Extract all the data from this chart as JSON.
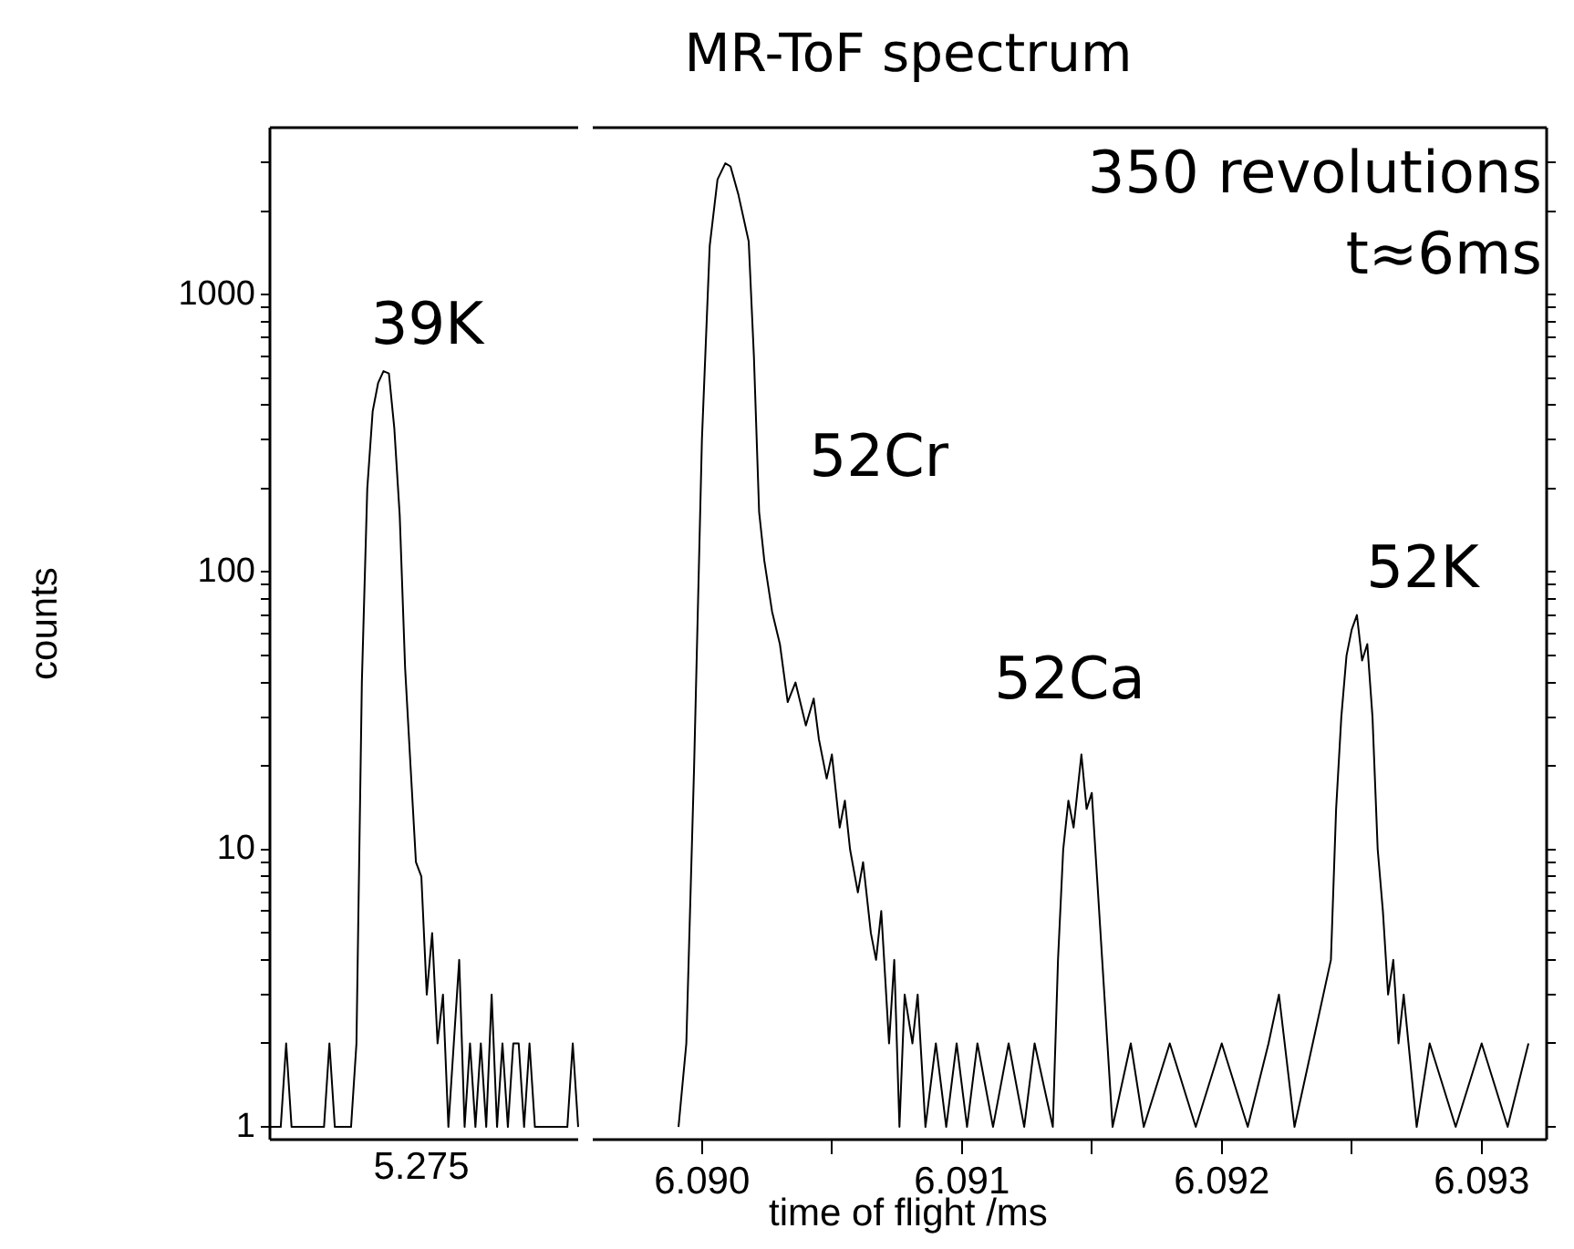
{
  "chart_data": [
    {
      "type": "line",
      "ylabel": "counts",
      "log": "y",
      "grid": false,
      "marker": "none",
      "categories": [
        null,
        null,
        null,
        null,
        null,
        null,
        null,
        null,
        null,
        null,
        null,
        null,
        null,
        null,
        null,
        null,
        null,
        null,
        null,
        null,
        null,
        null,
        null,
        null,
        null,
        null,
        null,
        null,
        "5.275",
        null,
        null,
        null,
        null,
        null,
        null,
        null,
        null,
        null,
        null,
        null,
        null,
        null,
        null,
        null,
        null,
        null,
        null,
        null,
        null,
        null,
        null,
        null,
        null,
        null,
        null,
        null,
        null,
        null
      ],
      "ylim": [
        0.9,
        4000
      ],
      "yticks": [
        1,
        {
          "value": 2,
          "label": null
        },
        {
          "value": 3,
          "label": null
        },
        {
          "value": 4,
          "label": null
        },
        {
          "value": 5,
          "label": null
        },
        {
          "value": 6,
          "label": null
        },
        {
          "value": 7,
          "label": null
        },
        {
          "value": 8,
          "label": null
        },
        {
          "value": 9,
          "label": null
        },
        10,
        {
          "value": 20,
          "label": null
        },
        {
          "value": 30,
          "label": null
        },
        {
          "value": 40,
          "label": null
        },
        {
          "value": 50,
          "label": null
        },
        {
          "value": 60,
          "label": null
        },
        {
          "value": 70,
          "label": null
        },
        {
          "value": 80,
          "label": null
        },
        {
          "value": 90,
          "label": null
        },
        100,
        {
          "value": 200,
          "label": null
        },
        {
          "value": 300,
          "label": null
        },
        {
          "value": 400,
          "label": null
        },
        {
          "value": 500,
          "label": null
        },
        {
          "value": 600,
          "label": null
        },
        {
          "value": 700,
          "label": null
        },
        {
          "value": 800,
          "label": null
        },
        {
          "value": 900,
          "label": null
        },
        1000,
        {
          "value": 2000,
          "label": null
        },
        {
          "value": 3000,
          "label": null
        }
      ],
      "annotations": [
        "39K"
      ],
      "series": [
        {
          "color": "#000000",
          "values": [
            1,
            1,
            1,
            2,
            1,
            1,
            1,
            1,
            1,
            1,
            1,
            2,
            1,
            1,
            1,
            1,
            2,
            40,
            200,
            380,
            480,
            530,
            520,
            330,
            160,
            45,
            20,
            9,
            8,
            3,
            5,
            2,
            3,
            1,
            2,
            4,
            1,
            2,
            1,
            2,
            1,
            3,
            1,
            2,
            1,
            2,
            2,
            1,
            2,
            1,
            1,
            1,
            1,
            1,
            1,
            1,
            2,
            1
          ]
        }
      ]
    },
    {
      "type": "line",
      "title": "MR-ToF spectrum",
      "xlabel": "time of flight /ms",
      "log": "y",
      "grid": false,
      "marker": "none",
      "tick_labels": "x",
      "xlim": [
        6.08958,
        6.09325
      ],
      "xticks": [
        {
          "value": 6.09,
          "label": "6.090"
        },
        {
          "value": 6.0905,
          "label": null
        },
        6.091,
        {
          "value": 6.0915,
          "label": null
        },
        6.092,
        {
          "value": 6.0925,
          "label": null
        },
        6.093
      ],
      "ylim": [
        0.9,
        4000
      ],
      "yticks": [
        1,
        {
          "value": 2,
          "label": null
        },
        {
          "value": 3,
          "label": null
        },
        {
          "value": 4,
          "label": null
        },
        {
          "value": 5,
          "label": null
        },
        {
          "value": 6,
          "label": null
        },
        {
          "value": 7,
          "label": null
        },
        {
          "value": 8,
          "label": null
        },
        {
          "value": 9,
          "label": null
        },
        10,
        {
          "value": 20,
          "label": null
        },
        {
          "value": 30,
          "label": null
        },
        {
          "value": 40,
          "label": null
        },
        {
          "value": 50,
          "label": null
        },
        {
          "value": 60,
          "label": null
        },
        {
          "value": 70,
          "label": null
        },
        {
          "value": 80,
          "label": null
        },
        {
          "value": 90,
          "label": null
        },
        100,
        {
          "value": 200,
          "label": null
        },
        {
          "value": 300,
          "label": null
        },
        {
          "value": 400,
          "label": null
        },
        {
          "value": 500,
          "label": null
        },
        {
          "value": 600,
          "label": null
        },
        {
          "value": 700,
          "label": null
        },
        {
          "value": 800,
          "label": null
        },
        {
          "value": 900,
          "label": null
        },
        1000,
        {
          "value": 2000,
          "label": null
        },
        {
          "value": 3000,
          "label": null
        }
      ],
      "annotations": [
        "350 revolutions",
        "t≈6ms",
        "52Cr",
        "52Ca",
        "52K"
      ],
      "series": [
        {
          "color": "#000000",
          "x": [
            6.08991,
            6.08994,
            6.08997,
            6.09,
            6.09003,
            6.09006,
            6.09009,
            6.09011,
            6.09014,
            6.09018,
            6.0902,
            6.09022,
            6.09024,
            6.09027,
            6.0903,
            6.09033,
            6.09036,
            6.0904,
            6.09043,
            6.09045,
            6.09048,
            6.0905,
            6.09053,
            6.09055,
            6.09057,
            6.0906,
            6.09062,
            6.09065,
            6.09067,
            6.09069,
            6.09072,
            6.09074,
            6.09076,
            6.09078,
            6.09081,
            6.09083,
            6.09086,
            6.0909,
            6.09094,
            6.09098,
            6.09102,
            6.09106,
            6.09112,
            6.09118,
            6.09124,
            6.09128,
            6.09135,
            6.09137,
            6.09139,
            6.09141,
            6.09143,
            6.09146,
            6.09148,
            6.0915,
            6.09152,
            6.09154,
            6.09156,
            6.09158,
            6.09165,
            6.0917,
            6.0918,
            6.0919,
            6.092,
            6.0921,
            6.09218,
            6.09222,
            6.09228,
            6.09235,
            6.09242,
            6.09244,
            6.09246,
            6.09248,
            6.0925,
            6.09252,
            6.09254,
            6.09256,
            6.09258,
            6.0926,
            6.09262,
            6.09264,
            6.09266,
            6.09268,
            6.0927,
            6.09275,
            6.0928,
            6.0929,
            6.093,
            6.0931,
            6.09318
          ],
          "values": [
            1,
            2,
            20,
            300,
            1500,
            2600,
            2975,
            2900,
            2300,
            1555,
            600,
            165,
            110,
            72,
            55,
            34,
            40,
            28,
            35,
            25,
            18,
            22,
            12,
            15,
            10,
            7,
            9,
            5,
            4,
            6,
            2,
            4,
            1,
            3,
            2,
            3,
            1,
            2,
            1,
            2,
            1,
            2,
            1,
            2,
            1,
            2,
            1,
            4,
            10,
            15,
            12,
            22,
            14,
            16,
            8,
            4,
            2,
            1,
            2,
            1,
            2,
            1,
            2,
            1,
            2,
            3,
            1,
            2,
            4,
            14,
            30,
            50,
            62,
            70,
            48,
            55,
            30,
            10,
            6,
            3,
            4,
            2,
            3,
            1,
            2,
            1,
            2,
            1,
            2
          ]
        }
      ]
    }
  ]
}
